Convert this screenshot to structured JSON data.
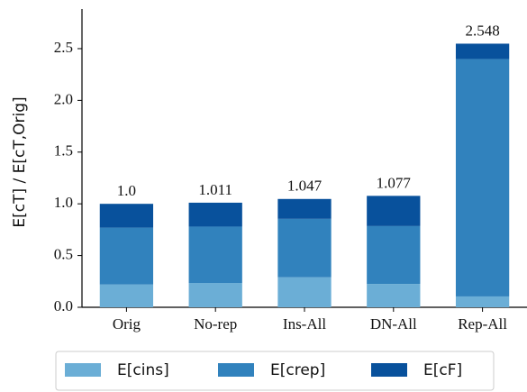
{
  "chart_data": {
    "type": "stacked-bar",
    "y_label": "E[cT] / E[cT,Orig]",
    "categories": [
      "Orig",
      "No-rep",
      "Ins-All",
      "DN-All",
      "Rep-All"
    ],
    "series": [
      {
        "name": "E[cins]",
        "color": "#6baed6",
        "values": [
          0.22,
          0.235,
          0.29,
          0.225,
          0.105
        ]
      },
      {
        "name": "E[crep]",
        "color": "#3182bd",
        "values": [
          0.55,
          0.545,
          0.565,
          0.56,
          2.295
        ]
      },
      {
        "name": "E[cF]",
        "color": "#08519c",
        "values": [
          0.23,
          0.231,
          0.192,
          0.292,
          0.148
        ]
      }
    ],
    "totals": [
      1.0,
      1.011,
      1.047,
      1.077,
      2.548
    ],
    "value_labels": [
      "1.0",
      "1.011",
      "1.047",
      "1.077",
      "2.548"
    ],
    "ylim": [
      0,
      2.883
    ],
    "yticks": [
      {
        "value": 0,
        "label": "0.0"
      },
      0.5,
      {
        "value": 1,
        "label": "1.0"
      },
      1.5,
      {
        "value": 2,
        "label": "2.0"
      },
      2.5
    ]
  }
}
